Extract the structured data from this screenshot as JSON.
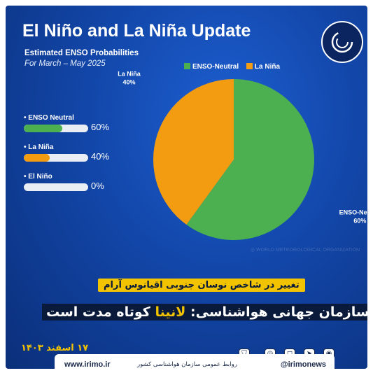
{
  "header": {
    "title": "El Niño and La Niña Update",
    "subtitle": "Estimated ENSO Probabilities",
    "period": "For March – May 2025"
  },
  "colors": {
    "background": "#1246a8",
    "enso_neutral": "#4caf50",
    "la_nina": "#f39c12",
    "el_nino": "#cfd5de",
    "accent_yellow": "#f2c300"
  },
  "bars": [
    {
      "label": "• ENSO Neutral",
      "value": 60,
      "display": "60%",
      "color": "#4caf50"
    },
    {
      "label": "• La Niña",
      "value": 40,
      "display": "40%",
      "color": "#f39c12"
    },
    {
      "label": "• El Niño",
      "value": 0,
      "display": "0%",
      "color": "#cfd5de"
    }
  ],
  "chart_data": {
    "type": "pie",
    "title": "Estimated ENSO Probabilities",
    "subtitle": "For March – May 2025",
    "categories": [
      "ENSO-Neutral",
      "La Niña"
    ],
    "values": [
      60,
      40
    ],
    "colors": [
      "#4caf50",
      "#f39c12"
    ],
    "slice_labels": [
      {
        "name": "ENSO-Neutral",
        "pct": "60%"
      },
      {
        "name": "La Niña",
        "pct": "40%"
      }
    ],
    "legend": [
      "ENSO-Neutral",
      "La Niña"
    ],
    "legend_position": "top"
  },
  "headlines": {
    "small": "تغییر در شاخص نوسان جنوبی اقیانوس آرام",
    "big_prefix": "سازمان جهانی هواشناسی:",
    "big_highlight": "لانینا",
    "big_suffix": "کوتاه مدت است"
  },
  "date": "۱۷ اسفند ۱۴۰۳",
  "footer": {
    "website": "www.irimo.ir",
    "relations": "روابط عمومی سازمان هواشناسی کشور",
    "handle": "@irimonews"
  }
}
